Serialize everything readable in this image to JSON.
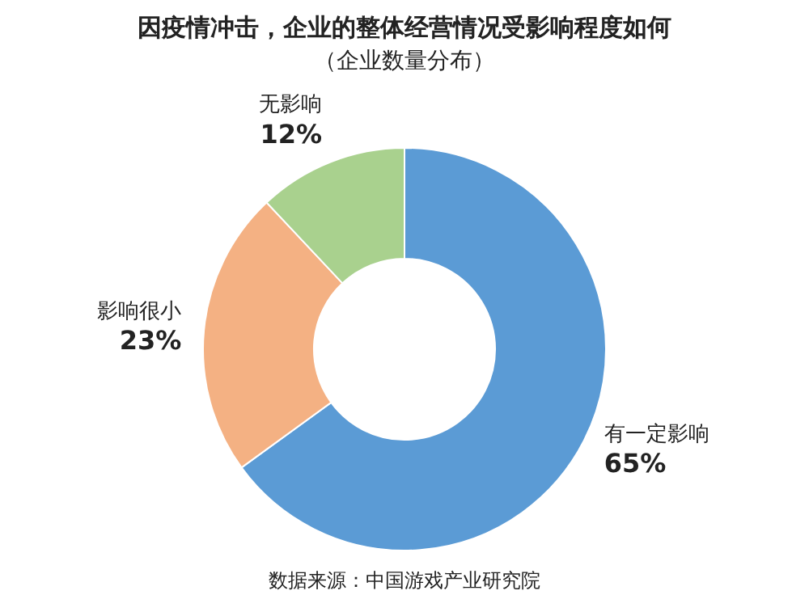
{
  "chart_data": {
    "type": "donut",
    "title": "因疫情冲击，企业的整体经营情况受影响程度如何",
    "subtitle": "（企业数量分布）",
    "categories": [
      "有一定影响",
      "影响很小",
      "无影响"
    ],
    "values": [
      65,
      23,
      12
    ],
    "value_labels": [
      "65%",
      "23%",
      "12%"
    ],
    "colors": [
      "#5b9bd5",
      "#f4b183",
      "#a9d18e"
    ],
    "legend": false,
    "annotations": [
      "数据来源：中国游戏产业研究院"
    ]
  }
}
